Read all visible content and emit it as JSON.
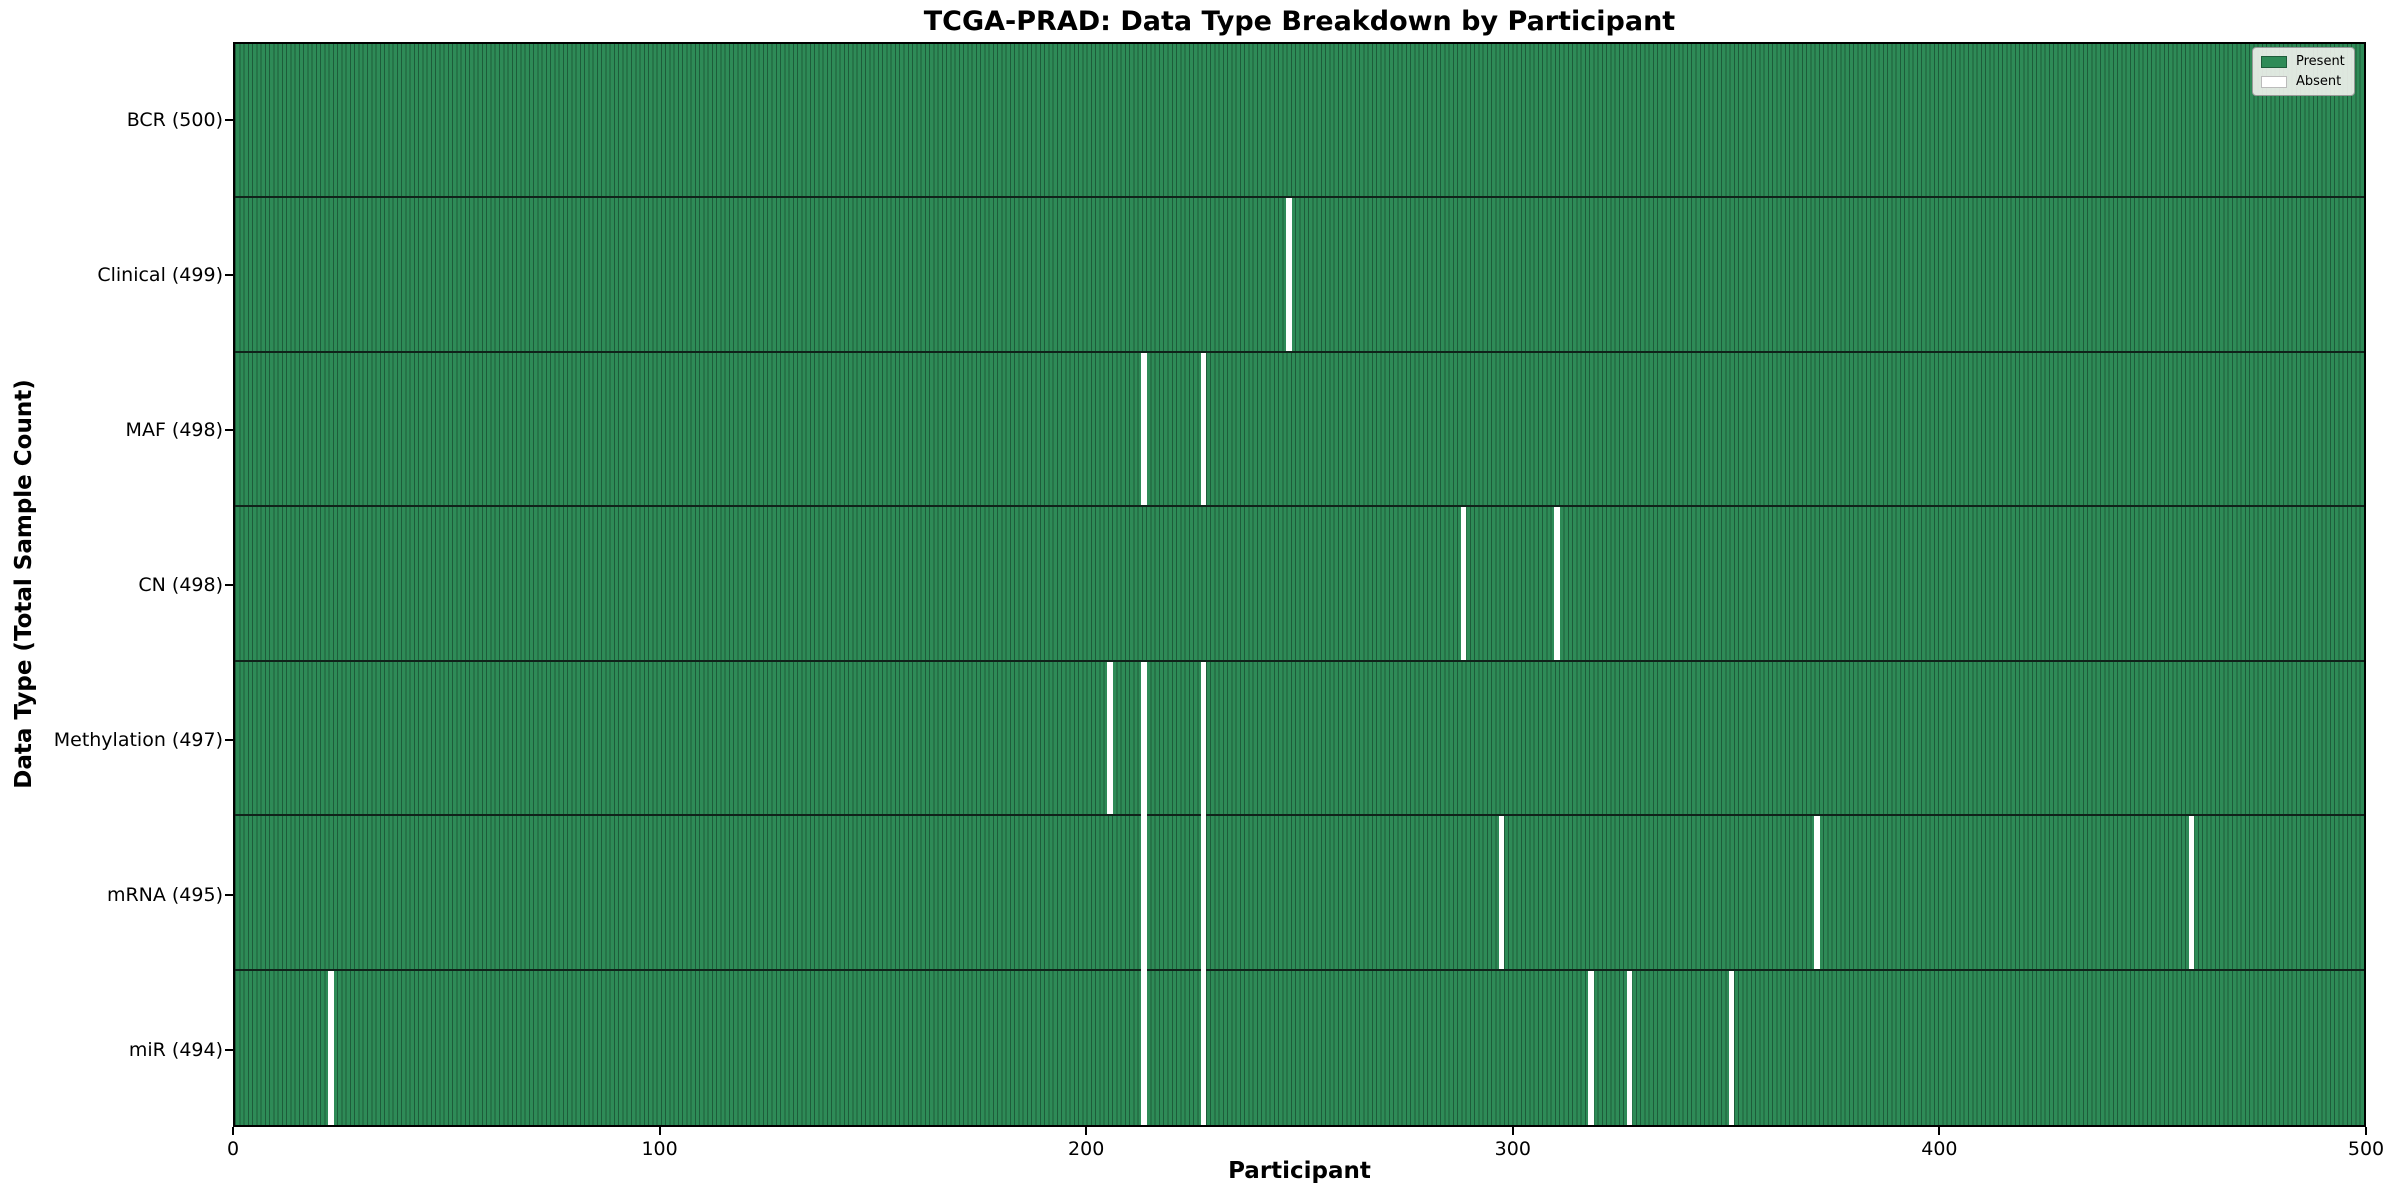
{
  "chart_data": {
    "type": "heatmap",
    "title": "TCGA-PRAD: Data Type Breakdown by Participant",
    "xlabel": "Participant",
    "ylabel": "Data Type (Total Sample Count)",
    "x_range": [
      0,
      500
    ],
    "x_ticks": [
      0,
      100,
      200,
      300,
      400,
      500
    ],
    "total_participants": 500,
    "grid": false,
    "rows": [
      {
        "label": "BCR (500)",
        "data_type": "BCR",
        "count": 500,
        "absent_participants": []
      },
      {
        "label": "Clinical (499)",
        "data_type": "Clinical",
        "count": 499,
        "absent_participants": [
          247
        ]
      },
      {
        "label": "MAF (498)",
        "data_type": "MAF",
        "count": 498,
        "absent_participants": [
          213,
          227
        ]
      },
      {
        "label": "CN (498)",
        "data_type": "CN",
        "count": 498,
        "absent_participants": [
          288,
          310
        ]
      },
      {
        "label": "Methylation (497)",
        "data_type": "Methylation",
        "count": 497,
        "absent_participants": [
          205,
          213,
          227
        ]
      },
      {
        "label": "mRNA (495)",
        "data_type": "mRNA",
        "count": 495,
        "absent_participants": [
          213,
          227,
          297,
          371,
          459
        ]
      },
      {
        "label": "miR (494)",
        "data_type": "miR",
        "count": 494,
        "absent_participants": [
          22,
          213,
          227,
          318,
          327,
          351
        ]
      }
    ],
    "legend": {
      "position": "upper right",
      "entries": [
        {
          "label": "Present",
          "color": "#2e8b57"
        },
        {
          "label": "Absent",
          "color": "#ffffff"
        }
      ]
    },
    "colors": {
      "present": "#2e8b57",
      "absent": "#ffffff",
      "bar_edge": "#1d5c3a",
      "row_separator": "#10231a",
      "axis": "#000000",
      "legend_background": "#f2f2ee",
      "legend_border": "#999999"
    }
  }
}
